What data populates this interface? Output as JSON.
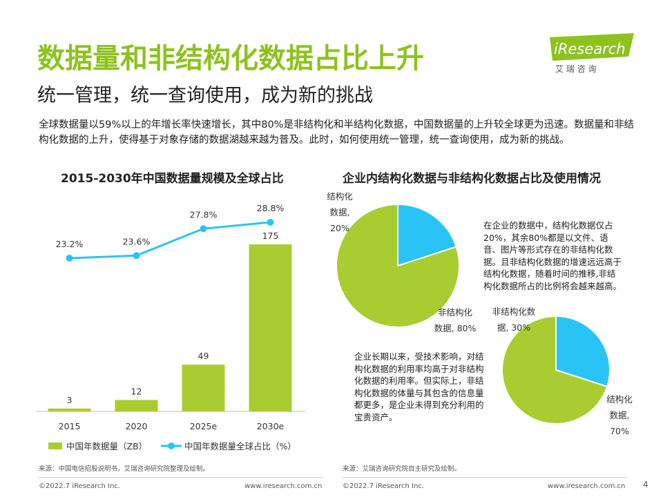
{
  "title": "数据量和非结构化数据占比上升",
  "subtitle": "统一管理，统一查询使用，成为新的挑战",
  "intro": "全球数据量以59%以上的年增长率快速增长，其中80%是非结构化和半结构化数据，中国数据量的上升较全球更为迅速。数据量和非结构化数据的上升，使得基于对象存储的数据湖越来越为普及。此时，如何使用统一管理，统一查询使用，成为新的挑战。",
  "logo": {
    "brand": "iResearch",
    "cn": "艾 瑞 咨 询",
    "accent": "#8dc21f"
  },
  "colors": {
    "green": "#a9cd30",
    "blue": "#29c4f5",
    "title_green": "#8dc21f"
  },
  "chart_data": [
    {
      "type": "bar",
      "title": "2015-2030年中国数据量规模及全球占比",
      "categories": [
        "2015",
        "2020",
        "2025e",
        "2030e"
      ],
      "series": [
        {
          "name": "中国年数据量（ZB）",
          "kind": "bar",
          "values": [
            3,
            12,
            49,
            175
          ],
          "labels": [
            "3",
            "12",
            "49",
            "175"
          ]
        },
        {
          "name": "中国年数据量全球占比（%）",
          "kind": "line",
          "values": [
            23.2,
            23.6,
            27.8,
            28.8
          ],
          "labels": [
            "23.2%",
            "23.6%",
            "27.8%",
            "28.8%"
          ]
        }
      ],
      "xlabel": "",
      "ylabel": "",
      "legend": "bottom"
    },
    {
      "type": "pie",
      "title": "企业内结构化数据与非结构化数据占比及使用情况",
      "slices": [
        {
          "label": "结构化数据,20%",
          "value": 20,
          "color": "#29c4f5"
        },
        {
          "label": "非结构化数据, 80%",
          "value": 80,
          "color": "#a9cd30"
        }
      ]
    },
    {
      "type": "pie",
      "slices": [
        {
          "label": "非结构化数据, 30%",
          "value": 30,
          "color": "#29c4f5"
        },
        {
          "label": "结构化数据,70%",
          "value": 70,
          "color": "#a9cd30"
        }
      ]
    }
  ],
  "notes": {
    "top": "在企业的数据中，结构化数据仅占20%，其余80%都是以文件、语音、图片等形式存在的非结构化数据。且非结构化数据的增速远远高于结构化数据，随着时间的推移,非结构化数据所占的比例将会越来越高。",
    "bottom": "企业长期以来，受技术影响，对结构化数据的利用率均高于对非结构化数据的利用率。但实际上，非结构化数据的体量与其包含的信息量都更多，是企业未得到充分利用的宝贵资产。"
  },
  "source_left": "来源：中国电信招股说明书，艾瑞咨询研究院整理及绘制。",
  "source_right": "来源：艾瑞咨询研究院自主研究及绘制。",
  "footer": {
    "copyright": "©2022.7 iResearch Inc.",
    "website": "www.iresearch.com.cn",
    "page": "4"
  }
}
